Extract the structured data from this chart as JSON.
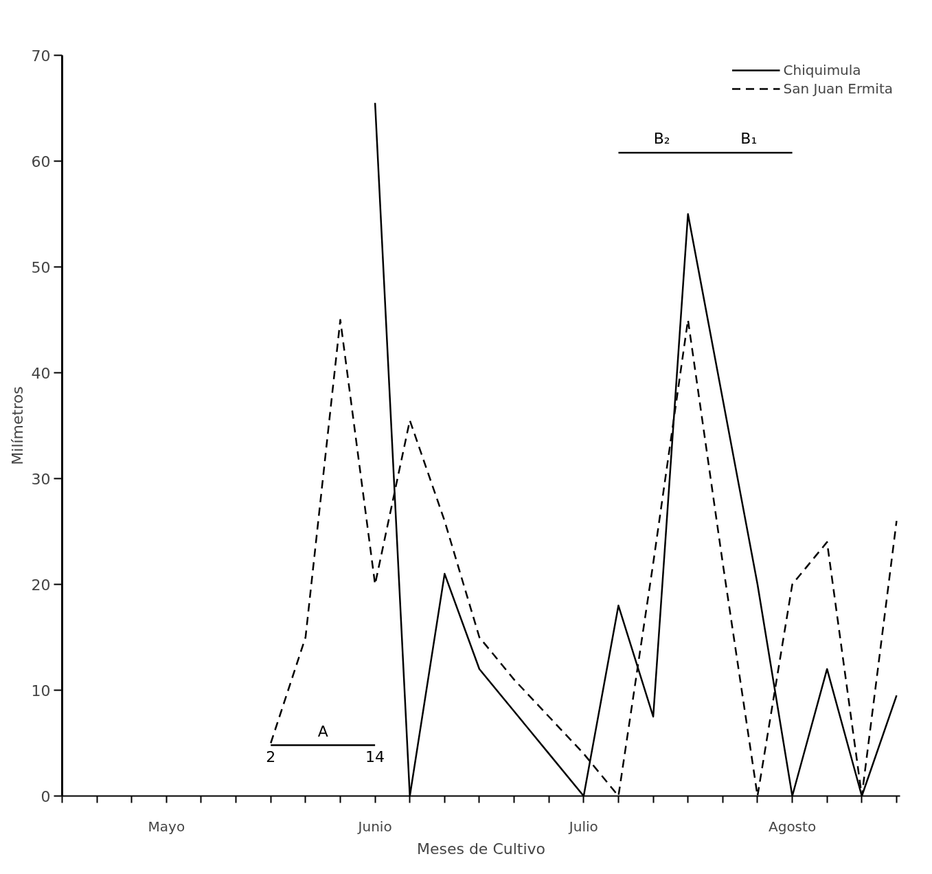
{
  "chart_data": {
    "type": "line",
    "xlabel": "Meses de Cultivo",
    "ylabel": "Milímetros",
    "categories": [
      null,
      null,
      null,
      "Mayo",
      null,
      null,
      null,
      null,
      null,
      "Junio",
      null,
      null,
      null,
      null,
      null,
      "Julio",
      null,
      null,
      null,
      null,
      null,
      "Agosto",
      null,
      null,
      null
    ],
    "ylim": [
      0,
      70
    ],
    "yticks": [
      0,
      10,
      20,
      30,
      40,
      50,
      60,
      70
    ],
    "grid": false,
    "legend": "top right",
    "marker": "none",
    "series": [
      {
        "name": "Chiquimula",
        "color": "#000000",
        "line_style": "solid",
        "values": [
          null,
          null,
          null,
          null,
          null,
          null,
          null,
          null,
          null,
          65.5,
          0,
          21,
          12,
          8,
          4,
          0,
          18,
          7.5,
          55,
          37.5,
          20,
          0,
          12,
          0,
          9.5
        ]
      },
      {
        "name": "San Juan Ermita",
        "color": "#000000",
        "line_style": "dashed",
        "values": [
          null,
          null,
          null,
          null,
          null,
          null,
          5,
          15,
          45,
          20,
          35.5,
          26,
          15,
          11,
          7.5,
          4,
          0,
          22,
          45,
          22,
          0,
          20,
          24,
          0,
          26
        ]
      },
      {
        "color": "#000000",
        "line_style": "solid",
        "values": [
          null,
          null,
          null,
          null,
          null,
          null,
          4.8,
          4.8,
          4.8,
          4.8,
          null,
          null,
          null,
          null,
          null,
          null,
          null,
          null,
          null,
          null,
          null,
          null,
          null,
          null,
          null
        ]
      },
      {
        "color": "#000000",
        "line_style": "solid",
        "values": [
          null,
          null,
          null,
          null,
          null,
          null,
          null,
          null,
          null,
          null,
          null,
          null,
          null,
          null,
          null,
          null,
          60.8,
          60.8,
          60.8,
          60.8,
          60.8,
          60.8,
          null,
          null,
          null
        ]
      }
    ],
    "annotations": [
      "A",
      "2",
      "14",
      "B₂",
      "B₁"
    ]
  }
}
